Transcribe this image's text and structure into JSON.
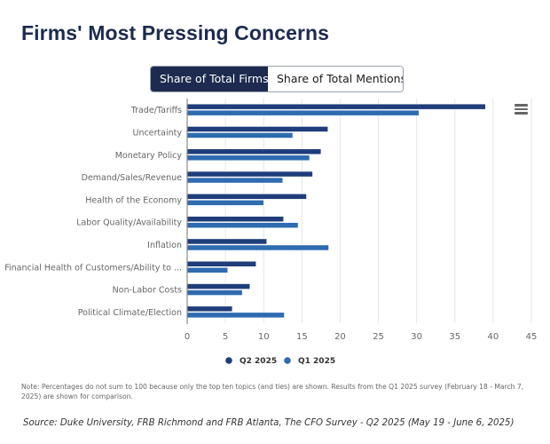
{
  "header": {
    "title": "Firms' Most Pressing Concerns"
  },
  "toggle": {
    "options": [
      {
        "label": "Share of Total Firms",
        "active": true
      },
      {
        "label": "Share of Total Mentions",
        "active": false
      }
    ]
  },
  "menu": {
    "icon": "hamburger-menu-icon"
  },
  "colors": {
    "q2": "#1f3d7a",
    "q1": "#2e6bb0",
    "title": "#1c2b4f",
    "toggle_active": "#1c2b4f"
  },
  "chart_data": {
    "type": "bar",
    "orientation": "horizontal",
    "title": "Firms' Most Pressing Concerns",
    "xlabel": "",
    "ylabel": "",
    "categories": [
      "Trade/Tariffs",
      "Uncertainty",
      "Monetary Policy",
      "Demand/Sales/Revenue",
      "Health of the Economy",
      "Labor Quality/Availability",
      "Inflation",
      "Financial Health of Customers/Ability to ...",
      "Non-Labor Costs",
      "Political Climate/Election"
    ],
    "series": [
      {
        "name": "Q2 2025",
        "color": "#1f3d7a",
        "values": [
          39.0,
          18.4,
          17.5,
          16.4,
          15.6,
          12.6,
          10.4,
          9.0,
          8.2,
          5.9
        ]
      },
      {
        "name": "Q1 2025",
        "color": "#2e6bb0",
        "values": [
          30.3,
          13.8,
          16.0,
          12.5,
          10.0,
          14.5,
          18.5,
          5.3,
          7.2,
          12.7
        ]
      }
    ],
    "xlim": [
      0,
      45
    ],
    "xticks": [
      0,
      5,
      10,
      15,
      20,
      25,
      30,
      35,
      40,
      45
    ],
    "grid": true,
    "legend": {
      "position": "bottom-center",
      "entries": [
        "Q2 2025",
        "Q1 2025"
      ]
    }
  },
  "footer": {
    "note": "Note: Percentages do not sum to 100 because only the top ten topics (and ties) are shown. Results from the Q1 2025 survey (February 18 - March 7, 2025) are shown for comparison.",
    "source": "Source: Duke University, FRB Richmond and FRB Atlanta, The CFO Survey - Q2 2025 (May 19 - June 6, 2025)"
  }
}
